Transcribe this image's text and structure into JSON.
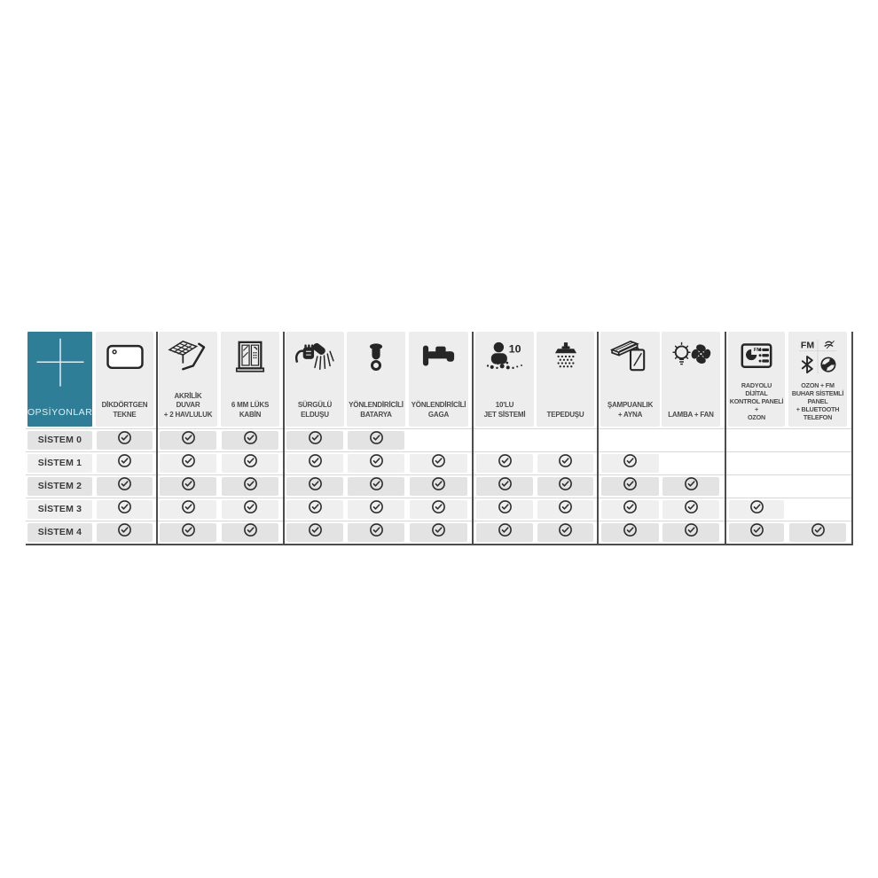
{
  "page": {
    "background": "#ffffff"
  },
  "colors": {
    "accent_teal": "#2f7e97",
    "header_chip": "#ededed",
    "chip_gray_dark": "#e3e3e3",
    "chip_gray_light": "#efefef",
    "line_dark": "#4d4d4d",
    "line_light": "#d7d7d7",
    "icon_black": "#262626"
  },
  "table": {
    "options_header": {
      "label": "OPSİYONLAR",
      "icon": "plus-icon"
    },
    "check_icon": "check-circle-icon",
    "columns": [
      {
        "id": "dikdortgen-tekne",
        "label": "DİKDÖRTGEN\nTEKNE",
        "icon": "bathtub-tray-icon"
      },
      {
        "id": "akrilik-duvar-havluluk",
        "label": "AKRİLİK\nDUVAR\n+ 2 HAVLULUK",
        "icon": "acrylic-wall-towel-icon"
      },
      {
        "id": "luks-kabin",
        "label": "6 MM LÜKS\nKABİN",
        "icon": "shower-cabin-icon"
      },
      {
        "id": "surgulu-eldusu",
        "label": "SÜRGÜLÜ\nELDUŞU",
        "icon": "hand-shower-icon"
      },
      {
        "id": "yonlendiricili-batarya",
        "label": "YÖNLENDİRİCİLİ\nBATARYA",
        "icon": "mixer-tap-icon"
      },
      {
        "id": "yonlendiricili-gaga",
        "label": "YÖNLENDİRİCİLİ\nGAGA",
        "icon": "spout-icon"
      },
      {
        "id": "jet-sistemi",
        "label": "10'LU\nJET SİSTEMİ",
        "icon": "jet-system-icon",
        "icon_text": "10"
      },
      {
        "id": "tepedusu",
        "label": "TEPEDUŞU",
        "icon": "overhead-shower-icon"
      },
      {
        "id": "sampuanlik-ayna",
        "label": "ŞAMPUANLIK\n+ AYNA",
        "icon": "shelf-mirror-icon"
      },
      {
        "id": "lamba-fan",
        "label": "LAMBA + FAN",
        "icon": "lamp-fan-icon"
      },
      {
        "id": "radyolu-kontrol-paneli",
        "label": "RADYOLU\nDİJİTAL\nKONTROL PANELİ\n+\nOZON",
        "icon": "fm-control-panel-icon",
        "icon_text": "FM"
      },
      {
        "id": "ozon-fm-buhar-paneli",
        "label": "OZON + FM\nBUHAR SİSTEMLİ\nPANEL\n+ BLUETOOTH\nTELEFON",
        "icon": "fm-bluetooth-phone-icon",
        "icon_text": "FM"
      }
    ],
    "rows": [
      {
        "label": "SİSTEM 0",
        "features": [
          1,
          1,
          1,
          1,
          1,
          0,
          0,
          0,
          0,
          0,
          0,
          0
        ]
      },
      {
        "label": "SİSTEM 1",
        "features": [
          1,
          1,
          1,
          1,
          1,
          1,
          1,
          1,
          1,
          0,
          0,
          0
        ]
      },
      {
        "label": "SİSTEM 2",
        "features": [
          1,
          1,
          1,
          1,
          1,
          1,
          1,
          1,
          1,
          1,
          0,
          0
        ]
      },
      {
        "label": "SİSTEM 3",
        "features": [
          1,
          1,
          1,
          1,
          1,
          1,
          1,
          1,
          1,
          1,
          1,
          0
        ]
      },
      {
        "label": "SİSTEM 4",
        "features": [
          1,
          1,
          1,
          1,
          1,
          1,
          1,
          1,
          1,
          1,
          1,
          1
        ]
      }
    ]
  }
}
